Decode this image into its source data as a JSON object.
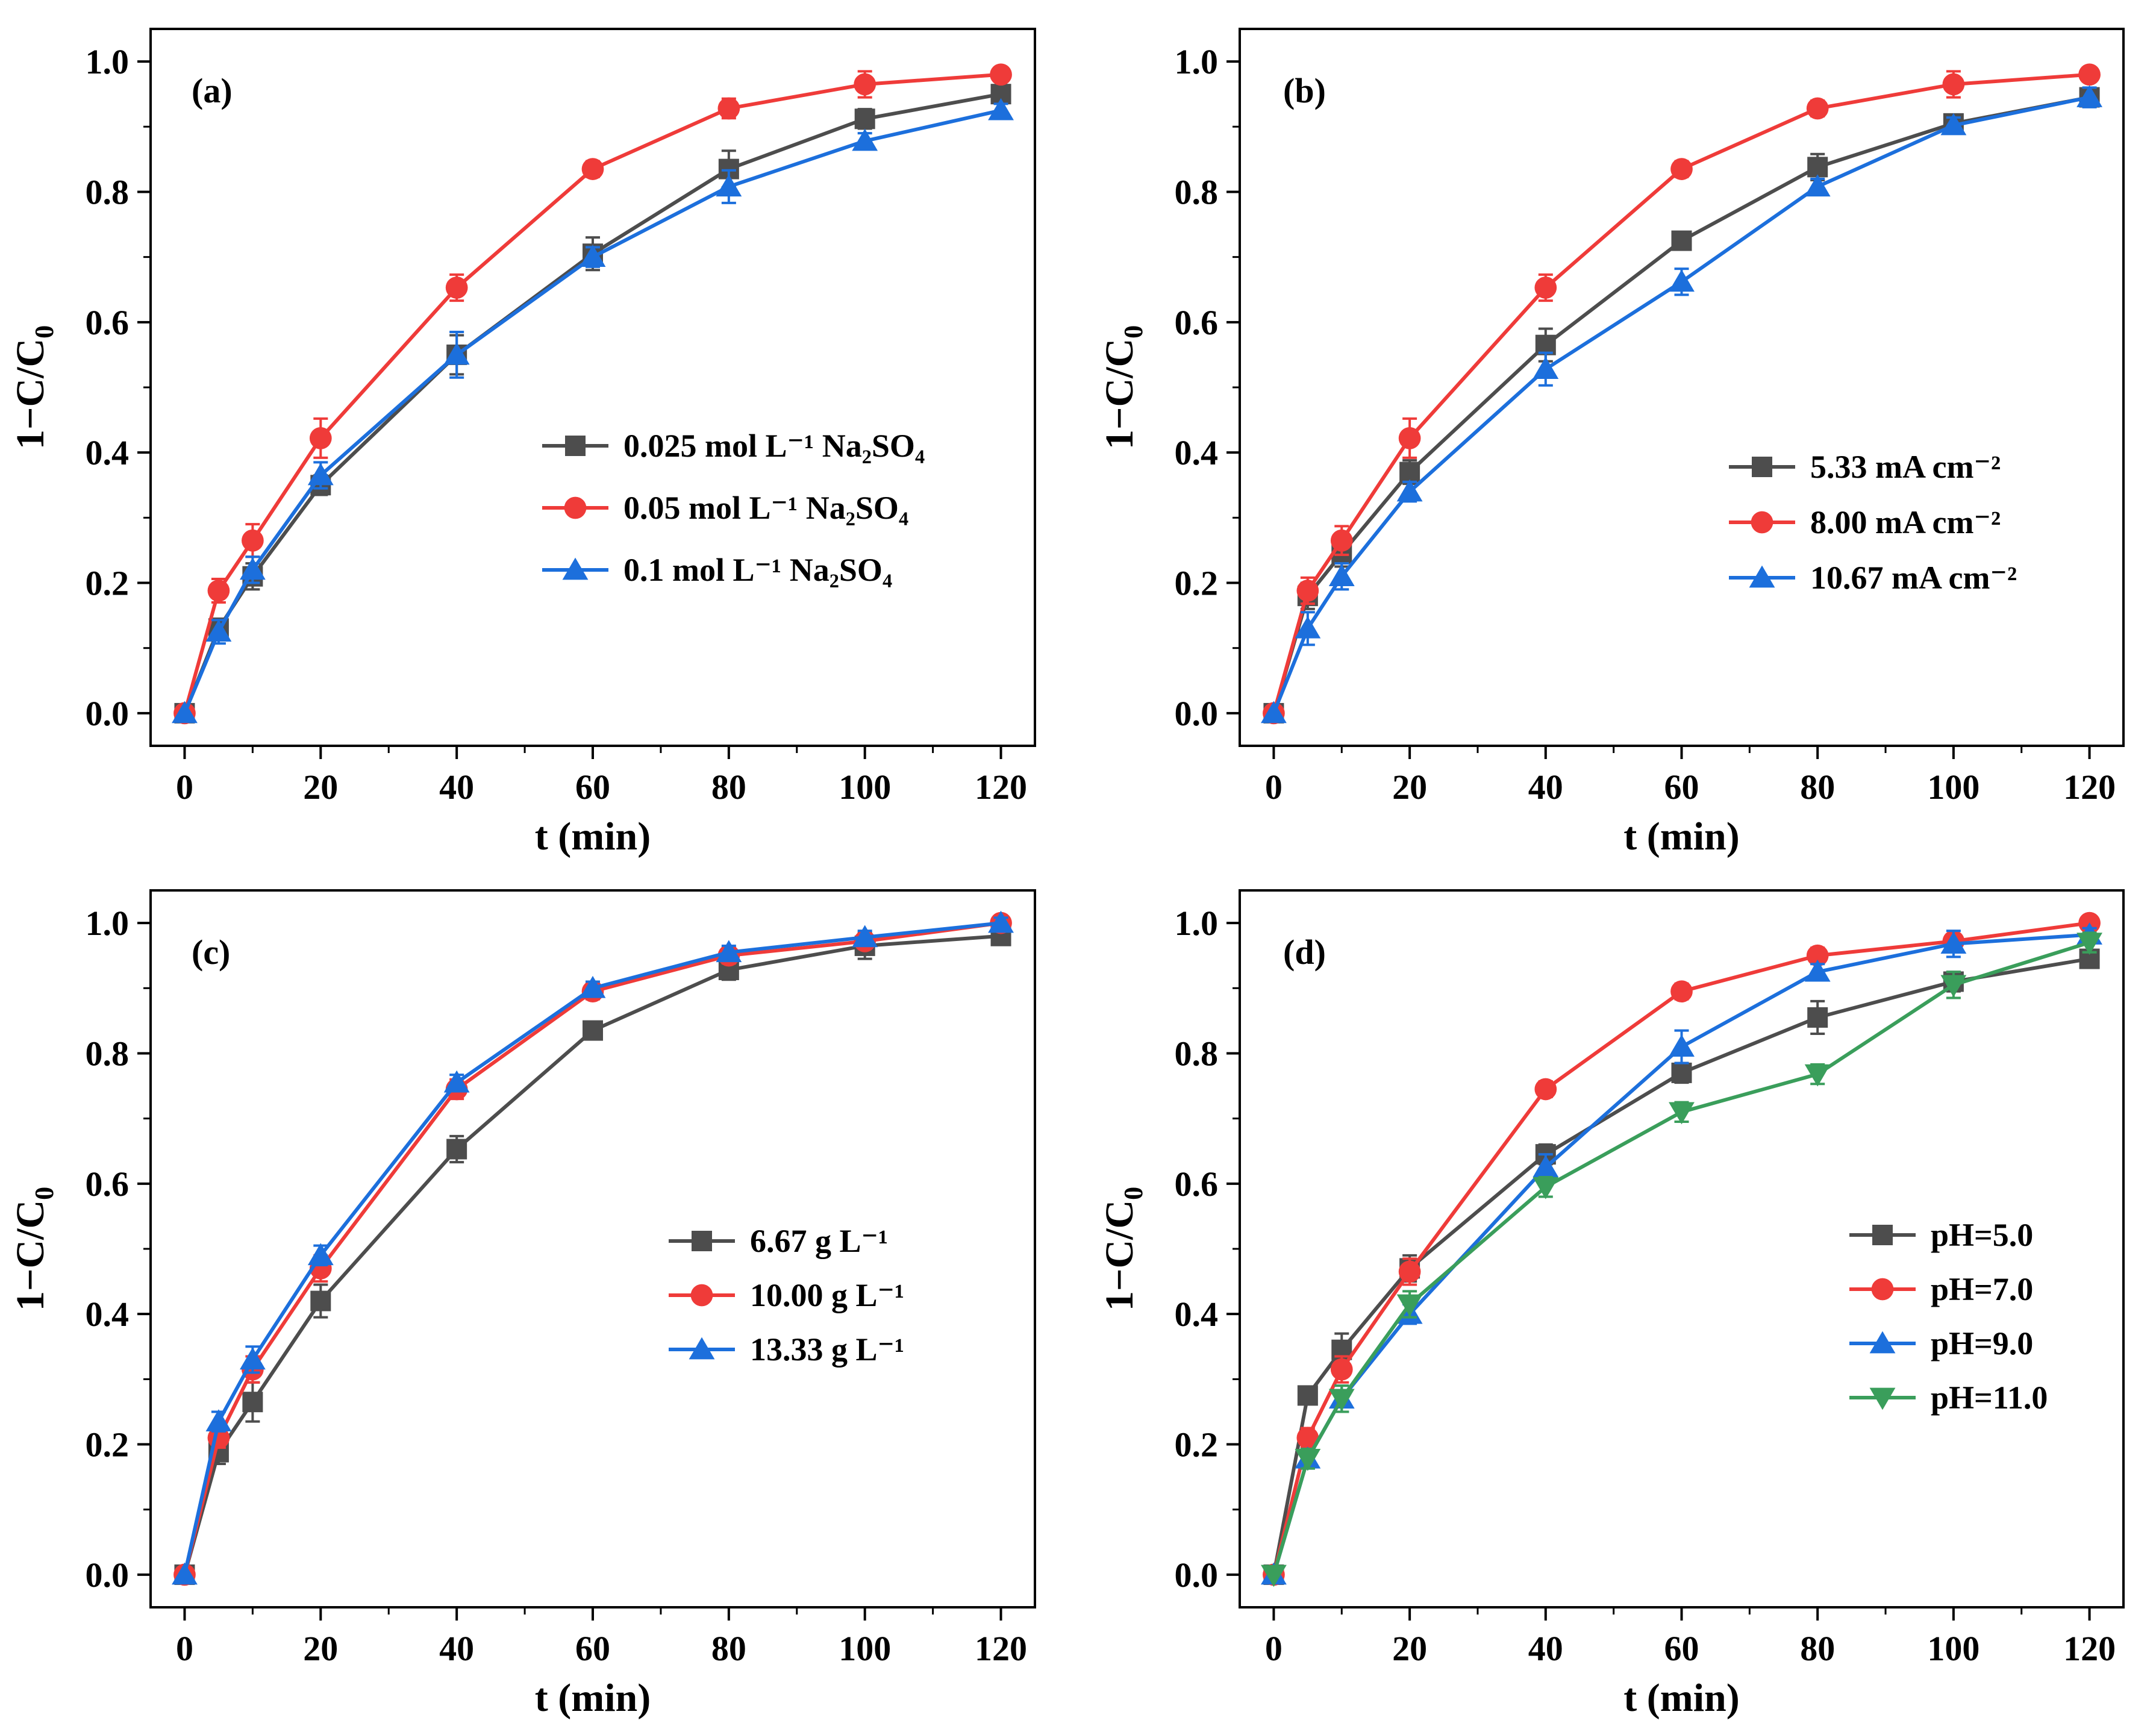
{
  "colors": {
    "gray": "#4d4d4d",
    "red": "#ef3b39",
    "blue": "#1c6fdc",
    "green": "#3a9e5b"
  },
  "chart_data": [
    {
      "type": "line",
      "panel_label": "(a)",
      "xlabel": "t (min)",
      "ylabel": "1−C/C",
      "ylabel_sub": "0",
      "xlim": [
        -5,
        125
      ],
      "ylim": [
        -0.05,
        1.05
      ],
      "xticks": [
        0,
        20,
        40,
        60,
        80,
        100,
        120
      ],
      "yticks": [
        "0.0",
        "0.2",
        "0.4",
        "0.6",
        "0.8",
        "1.0"
      ],
      "legend_position": "center-right",
      "x": [
        0,
        5,
        10,
        20,
        40,
        60,
        80,
        100,
        120
      ],
      "series": [
        {
          "name": "0.025 mol L⁻¹ Na₂SO₄",
          "color": "gray",
          "marker": "square",
          "values": [
            0.0,
            0.13,
            0.21,
            0.35,
            0.55,
            0.705,
            0.835,
            0.912,
            0.95
          ],
          "errors": [
            0.0,
            0.015,
            0.02,
            0.015,
            0.03,
            0.025,
            0.028,
            0.015,
            0.01
          ]
        },
        {
          "name": "0.05 mol L⁻¹ Na₂SO₄",
          "color": "red",
          "marker": "circle",
          "values": [
            0.0,
            0.188,
            0.265,
            0.422,
            0.653,
            0.835,
            0.928,
            0.965,
            0.98
          ],
          "errors": [
            0.0,
            0.018,
            0.025,
            0.03,
            0.02,
            0.012,
            0.015,
            0.02,
            0.01
          ]
        },
        {
          "name": "0.1 mol L⁻¹ Na₂SO₄",
          "color": "blue",
          "marker": "triangle-up",
          "values": [
            0.0,
            0.125,
            0.22,
            0.365,
            0.55,
            0.7,
            0.808,
            0.878,
            0.925
          ],
          "errors": [
            0.0,
            0.018,
            0.02,
            0.02,
            0.035,
            0.015,
            0.025,
            0.012,
            0.01
          ]
        }
      ]
    },
    {
      "type": "line",
      "panel_label": "(b)",
      "xlabel": "t (min)",
      "ylabel": "1−C/C",
      "ylabel_sub": "0",
      "xlim": [
        -5,
        125
      ],
      "ylim": [
        -0.05,
        1.05
      ],
      "xticks": [
        0,
        20,
        40,
        60,
        80,
        100,
        120
      ],
      "yticks": [
        "0.0",
        "0.2",
        "0.4",
        "0.6",
        "0.8",
        "1.0"
      ],
      "legend_position": "center-right",
      "x": [
        0,
        5,
        10,
        20,
        40,
        60,
        80,
        100,
        120
      ],
      "series": [
        {
          "name": "5.33 mA cm⁻²",
          "color": "gray",
          "marker": "square",
          "values": [
            0.0,
            0.18,
            0.245,
            0.37,
            0.565,
            0.725,
            0.838,
            0.905,
            0.945
          ],
          "errors": [
            0.0,
            0.02,
            0.02,
            0.018,
            0.025,
            0.012,
            0.02,
            0.012,
            0.012
          ]
        },
        {
          "name": "8.00 mA cm⁻²",
          "color": "red",
          "marker": "circle",
          "values": [
            0.0,
            0.188,
            0.265,
            0.422,
            0.653,
            0.835,
            0.928,
            0.965,
            0.98
          ],
          "errors": [
            0.0,
            0.02,
            0.022,
            0.03,
            0.02,
            0.012,
            0.012,
            0.02,
            0.01
          ]
        },
        {
          "name": "10.67 mA cm⁻²",
          "color": "blue",
          "marker": "triangle-up",
          "values": [
            0.0,
            0.13,
            0.21,
            0.34,
            0.528,
            0.662,
            0.808,
            0.902,
            0.945
          ],
          "errors": [
            0.0,
            0.025,
            0.02,
            0.015,
            0.025,
            0.02,
            0.012,
            0.012,
            0.015
          ]
        }
      ]
    },
    {
      "type": "line",
      "panel_label": "(c)",
      "xlabel": "t (min)",
      "ylabel": "1−C/C",
      "ylabel_sub": "0",
      "xlim": [
        -5,
        125
      ],
      "ylim": [
        -0.05,
        1.05
      ],
      "xticks": [
        0,
        20,
        40,
        60,
        80,
        100,
        120
      ],
      "yticks": [
        "0.0",
        "0.2",
        "0.4",
        "0.6",
        "0.8",
        "1.0"
      ],
      "legend_position": "center-right",
      "x": [
        0,
        5,
        10,
        20,
        40,
        60,
        80,
        100,
        120
      ],
      "series": [
        {
          "name": "6.67 g L⁻¹",
          "color": "gray",
          "marker": "square",
          "values": [
            0.0,
            0.188,
            0.265,
            0.42,
            0.653,
            0.835,
            0.928,
            0.965,
            0.98
          ],
          "errors": [
            0.0,
            0.018,
            0.03,
            0.025,
            0.02,
            0.01,
            0.015,
            0.02,
            0.01
          ]
        },
        {
          "name": "10.00 g L⁻¹",
          "color": "red",
          "marker": "circle",
          "values": [
            0.0,
            0.21,
            0.315,
            0.47,
            0.745,
            0.895,
            0.95,
            0.972,
            1.0
          ],
          "errors": [
            0.0,
            0.015,
            0.02,
            0.02,
            0.015,
            0.012,
            0.012,
            0.01,
            0.008
          ]
        },
        {
          "name": "13.33 g L⁻¹",
          "color": "blue",
          "marker": "triangle-up",
          "values": [
            0.0,
            0.235,
            0.33,
            0.49,
            0.755,
            0.9,
            0.955,
            0.978,
            1.0
          ],
          "errors": [
            0.0,
            0.015,
            0.02,
            0.015,
            0.012,
            0.01,
            0.01,
            0.01,
            0.008
          ]
        }
      ]
    },
    {
      "type": "line",
      "panel_label": "(d)",
      "xlabel": "t (min)",
      "ylabel": "1−C/C",
      "ylabel_sub": "0",
      "xlim": [
        -5,
        125
      ],
      "ylim": [
        -0.05,
        1.05
      ],
      "xticks": [
        0,
        20,
        40,
        60,
        80,
        100,
        120
      ],
      "yticks": [
        "0.0",
        "0.2",
        "0.4",
        "0.6",
        "0.8",
        "1.0"
      ],
      "legend_position": "center-right",
      "x": [
        0,
        5,
        10,
        20,
        40,
        60,
        80,
        100,
        120
      ],
      "series": [
        {
          "name": "pH=5.0",
          "color": "gray",
          "marker": "square",
          "values": [
            0.0,
            0.275,
            0.345,
            0.47,
            0.645,
            0.77,
            0.855,
            0.91,
            0.945
          ],
          "errors": [
            0.0,
            0.012,
            0.025,
            0.02,
            0.015,
            0.015,
            0.025,
            0.015,
            0.012
          ]
        },
        {
          "name": "pH=7.0",
          "color": "red",
          "marker": "circle",
          "values": [
            0.0,
            0.21,
            0.315,
            0.465,
            0.745,
            0.895,
            0.95,
            0.972,
            1.0
          ],
          "errors": [
            0.0,
            0.015,
            0.02,
            0.02,
            0.012,
            0.012,
            0.012,
            0.01,
            0.008
          ]
        },
        {
          "name": "pH=9.0",
          "color": "blue",
          "marker": "triangle-up",
          "values": [
            0.0,
            0.178,
            0.27,
            0.4,
            0.625,
            0.81,
            0.925,
            0.968,
            0.982
          ],
          "errors": [
            0.0,
            0.015,
            0.02,
            0.015,
            0.02,
            0.025,
            0.012,
            0.02,
            0.01
          ]
        },
        {
          "name": "pH=11.0",
          "color": "green",
          "marker": "triangle-down",
          "values": [
            0.0,
            0.178,
            0.27,
            0.415,
            0.595,
            0.71,
            0.768,
            0.905,
            0.97
          ],
          "errors": [
            0.0,
            0.015,
            0.02,
            0.02,
            0.015,
            0.015,
            0.015,
            0.02,
            0.015
          ]
        }
      ]
    }
  ]
}
